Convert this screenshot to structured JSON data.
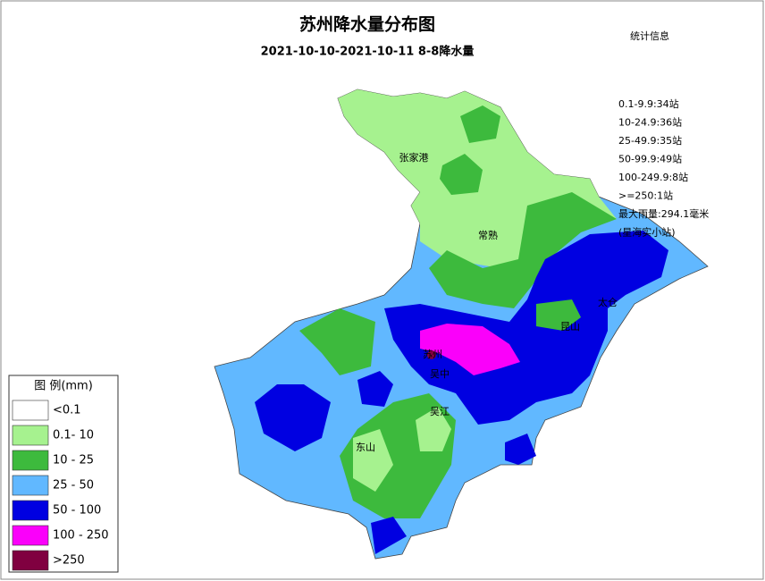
{
  "title": "苏州降水量分布图",
  "subtitle": "2021-10-10-2021-10-11  8-8降水量",
  "stats": {
    "title": "统计信息",
    "lines": [
      "0.1-9.9:34站",
      "10-24.9:36站",
      "25-49.9:35站",
      "50-99.9:49站",
      "100-249.9:8站",
      ">=250:1站",
      "最大雨量:294.1毫米",
      "(星海实小站)"
    ]
  },
  "legend": {
    "title": "图 例(mm)",
    "items": [
      {
        "label": "<0.1",
        "color": "#ffffff"
      },
      {
        "label": "0.1- 10",
        "color": "#a6f28f"
      },
      {
        "label": "10 - 25",
        "color": "#3dba3d"
      },
      {
        "label": "25 - 50",
        "color": "#61b8ff"
      },
      {
        "label": "50 - 100",
        "color": "#0000e1"
      },
      {
        "label": "100 - 250",
        "color": "#fa00fa"
      },
      {
        "label": ">250",
        "color": "#800040"
      }
    ]
  },
  "places": [
    "张家港",
    "常熟",
    "太仓",
    "昆山",
    "苏州",
    "吴中",
    "吴江",
    "东山"
  ]
}
